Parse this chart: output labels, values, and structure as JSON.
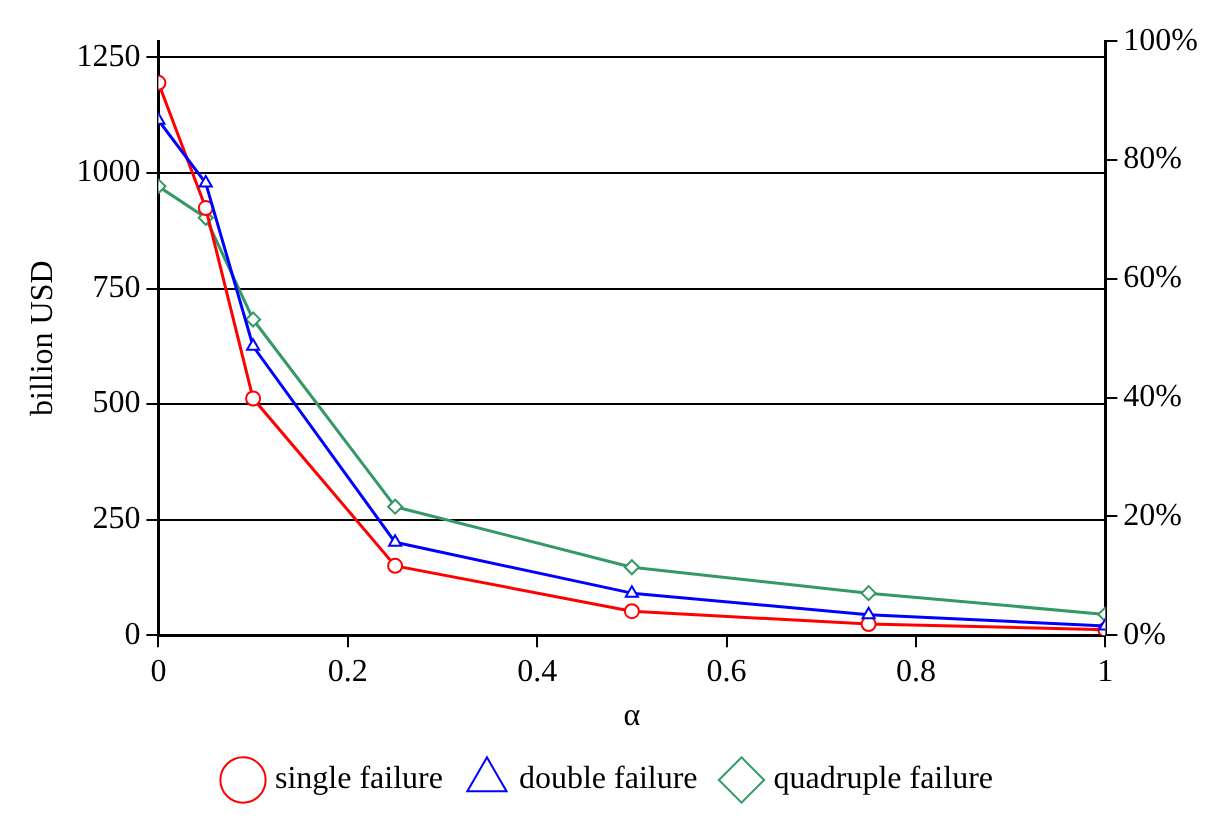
{
  "chart_data": {
    "type": "line",
    "xlabel": "α",
    "ylabel": "billion USD",
    "x": [
      0,
      0.05,
      0.1,
      0.25,
      0.5,
      0.75,
      1
    ],
    "series": [
      {
        "name": "single failure",
        "color": "#ff0000",
        "marker": "circle",
        "values": [
          1195,
          924,
          512,
          150,
          52,
          24,
          12
        ]
      },
      {
        "name": "double failure",
        "color": "#0000ff",
        "marker": "triangle",
        "values": [
          1114,
          978,
          625,
          201,
          91,
          44,
          20
        ]
      },
      {
        "name": "quadruple failure",
        "color": "#339966",
        "marker": "diamond",
        "values": [
          971,
          903,
          683,
          278,
          147,
          91,
          45
        ]
      }
    ],
    "xlim": [
      0,
      1
    ],
    "xticks": [
      0,
      0.2,
      0.4,
      0.6,
      0.8,
      1
    ],
    "ylim": [
      0,
      1285
    ],
    "yticks": [
      0,
      250,
      500,
      750,
      1000,
      1250
    ],
    "y2lim": [
      0,
      100
    ],
    "y2ticks": [
      {
        "value": 0,
        "label": "0%"
      },
      {
        "value": 20,
        "label": "20%"
      },
      {
        "value": 40,
        "label": "40%"
      },
      {
        "value": 60,
        "label": "60%"
      },
      {
        "value": 80,
        "label": "80%"
      },
      {
        "value": 100,
        "label": "100%"
      }
    ],
    "grid": "y",
    "legend": "bottom"
  }
}
